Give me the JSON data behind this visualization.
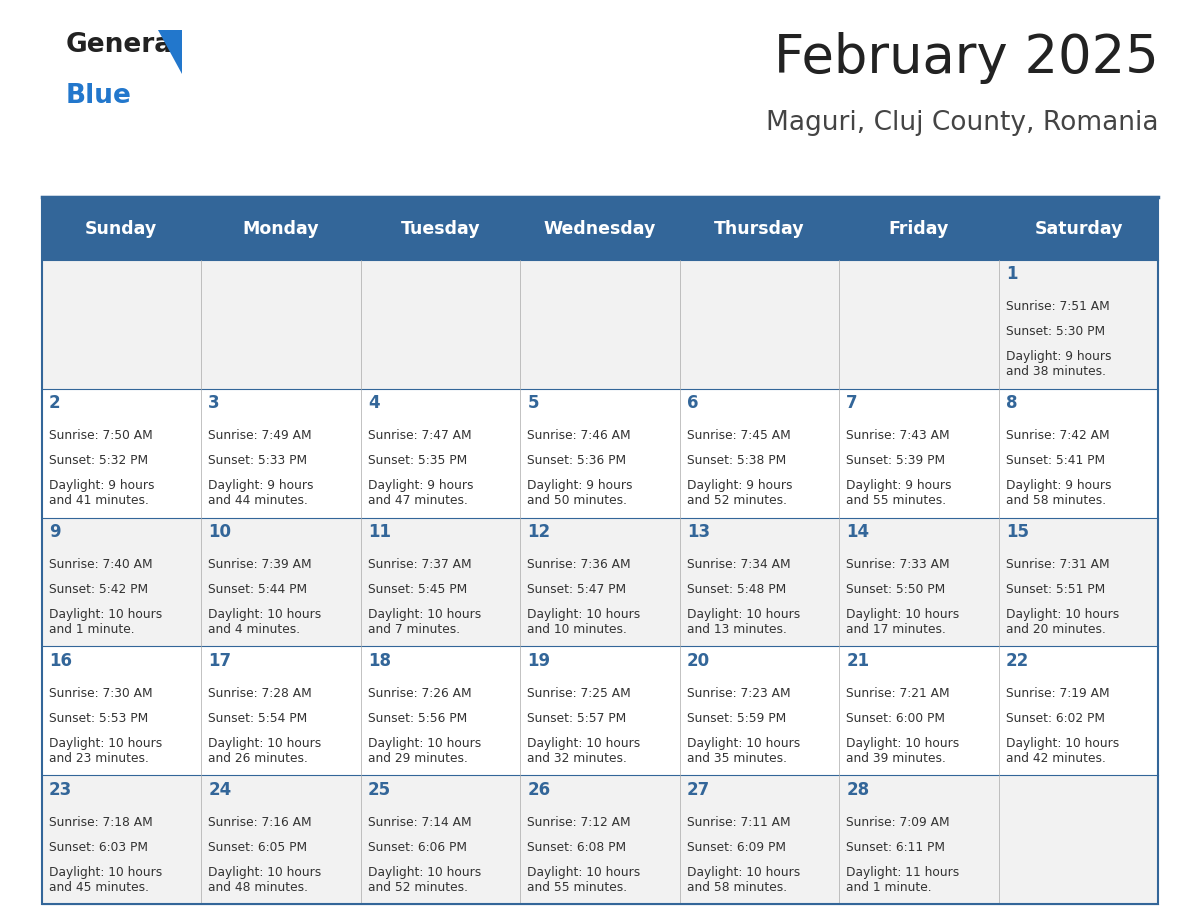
{
  "title": "February 2025",
  "subtitle": "Maguri, Cluj County, Romania",
  "header_bg": "#336699",
  "header_text_color": "#ffffff",
  "cell_bg_even": "#f2f2f2",
  "cell_bg_odd": "#ffffff",
  "day_headers": [
    "Sunday",
    "Monday",
    "Tuesday",
    "Wednesday",
    "Thursday",
    "Friday",
    "Saturday"
  ],
  "title_color": "#222222",
  "subtitle_color": "#444444",
  "day_number_color": "#336699",
  "info_color": "#333333",
  "line_color": "#336699",
  "days": [
    {
      "date": 1,
      "col": 6,
      "row": 0,
      "sunrise": "7:51 AM",
      "sunset": "5:30 PM",
      "daylight": "9 hours\nand 38 minutes."
    },
    {
      "date": 2,
      "col": 0,
      "row": 1,
      "sunrise": "7:50 AM",
      "sunset": "5:32 PM",
      "daylight": "9 hours\nand 41 minutes."
    },
    {
      "date": 3,
      "col": 1,
      "row": 1,
      "sunrise": "7:49 AM",
      "sunset": "5:33 PM",
      "daylight": "9 hours\nand 44 minutes."
    },
    {
      "date": 4,
      "col": 2,
      "row": 1,
      "sunrise": "7:47 AM",
      "sunset": "5:35 PM",
      "daylight": "9 hours\nand 47 minutes."
    },
    {
      "date": 5,
      "col": 3,
      "row": 1,
      "sunrise": "7:46 AM",
      "sunset": "5:36 PM",
      "daylight": "9 hours\nand 50 minutes."
    },
    {
      "date": 6,
      "col": 4,
      "row": 1,
      "sunrise": "7:45 AM",
      "sunset": "5:38 PM",
      "daylight": "9 hours\nand 52 minutes."
    },
    {
      "date": 7,
      "col": 5,
      "row": 1,
      "sunrise": "7:43 AM",
      "sunset": "5:39 PM",
      "daylight": "9 hours\nand 55 minutes."
    },
    {
      "date": 8,
      "col": 6,
      "row": 1,
      "sunrise": "7:42 AM",
      "sunset": "5:41 PM",
      "daylight": "9 hours\nand 58 minutes."
    },
    {
      "date": 9,
      "col": 0,
      "row": 2,
      "sunrise": "7:40 AM",
      "sunset": "5:42 PM",
      "daylight": "10 hours\nand 1 minute."
    },
    {
      "date": 10,
      "col": 1,
      "row": 2,
      "sunrise": "7:39 AM",
      "sunset": "5:44 PM",
      "daylight": "10 hours\nand 4 minutes."
    },
    {
      "date": 11,
      "col": 2,
      "row": 2,
      "sunrise": "7:37 AM",
      "sunset": "5:45 PM",
      "daylight": "10 hours\nand 7 minutes."
    },
    {
      "date": 12,
      "col": 3,
      "row": 2,
      "sunrise": "7:36 AM",
      "sunset": "5:47 PM",
      "daylight": "10 hours\nand 10 minutes."
    },
    {
      "date": 13,
      "col": 4,
      "row": 2,
      "sunrise": "7:34 AM",
      "sunset": "5:48 PM",
      "daylight": "10 hours\nand 13 minutes."
    },
    {
      "date": 14,
      "col": 5,
      "row": 2,
      "sunrise": "7:33 AM",
      "sunset": "5:50 PM",
      "daylight": "10 hours\nand 17 minutes."
    },
    {
      "date": 15,
      "col": 6,
      "row": 2,
      "sunrise": "7:31 AM",
      "sunset": "5:51 PM",
      "daylight": "10 hours\nand 20 minutes."
    },
    {
      "date": 16,
      "col": 0,
      "row": 3,
      "sunrise": "7:30 AM",
      "sunset": "5:53 PM",
      "daylight": "10 hours\nand 23 minutes."
    },
    {
      "date": 17,
      "col": 1,
      "row": 3,
      "sunrise": "7:28 AM",
      "sunset": "5:54 PM",
      "daylight": "10 hours\nand 26 minutes."
    },
    {
      "date": 18,
      "col": 2,
      "row": 3,
      "sunrise": "7:26 AM",
      "sunset": "5:56 PM",
      "daylight": "10 hours\nand 29 minutes."
    },
    {
      "date": 19,
      "col": 3,
      "row": 3,
      "sunrise": "7:25 AM",
      "sunset": "5:57 PM",
      "daylight": "10 hours\nand 32 minutes."
    },
    {
      "date": 20,
      "col": 4,
      "row": 3,
      "sunrise": "7:23 AM",
      "sunset": "5:59 PM",
      "daylight": "10 hours\nand 35 minutes."
    },
    {
      "date": 21,
      "col": 5,
      "row": 3,
      "sunrise": "7:21 AM",
      "sunset": "6:00 PM",
      "daylight": "10 hours\nand 39 minutes."
    },
    {
      "date": 22,
      "col": 6,
      "row": 3,
      "sunrise": "7:19 AM",
      "sunset": "6:02 PM",
      "daylight": "10 hours\nand 42 minutes."
    },
    {
      "date": 23,
      "col": 0,
      "row": 4,
      "sunrise": "7:18 AM",
      "sunset": "6:03 PM",
      "daylight": "10 hours\nand 45 minutes."
    },
    {
      "date": 24,
      "col": 1,
      "row": 4,
      "sunrise": "7:16 AM",
      "sunset": "6:05 PM",
      "daylight": "10 hours\nand 48 minutes."
    },
    {
      "date": 25,
      "col": 2,
      "row": 4,
      "sunrise": "7:14 AM",
      "sunset": "6:06 PM",
      "daylight": "10 hours\nand 52 minutes."
    },
    {
      "date": 26,
      "col": 3,
      "row": 4,
      "sunrise": "7:12 AM",
      "sunset": "6:08 PM",
      "daylight": "10 hours\nand 55 minutes."
    },
    {
      "date": 27,
      "col": 4,
      "row": 4,
      "sunrise": "7:11 AM",
      "sunset": "6:09 PM",
      "daylight": "10 hours\nand 58 minutes."
    },
    {
      "date": 28,
      "col": 5,
      "row": 4,
      "sunrise": "7:09 AM",
      "sunset": "6:11 PM",
      "daylight": "11 hours\nand 1 minute."
    }
  ]
}
